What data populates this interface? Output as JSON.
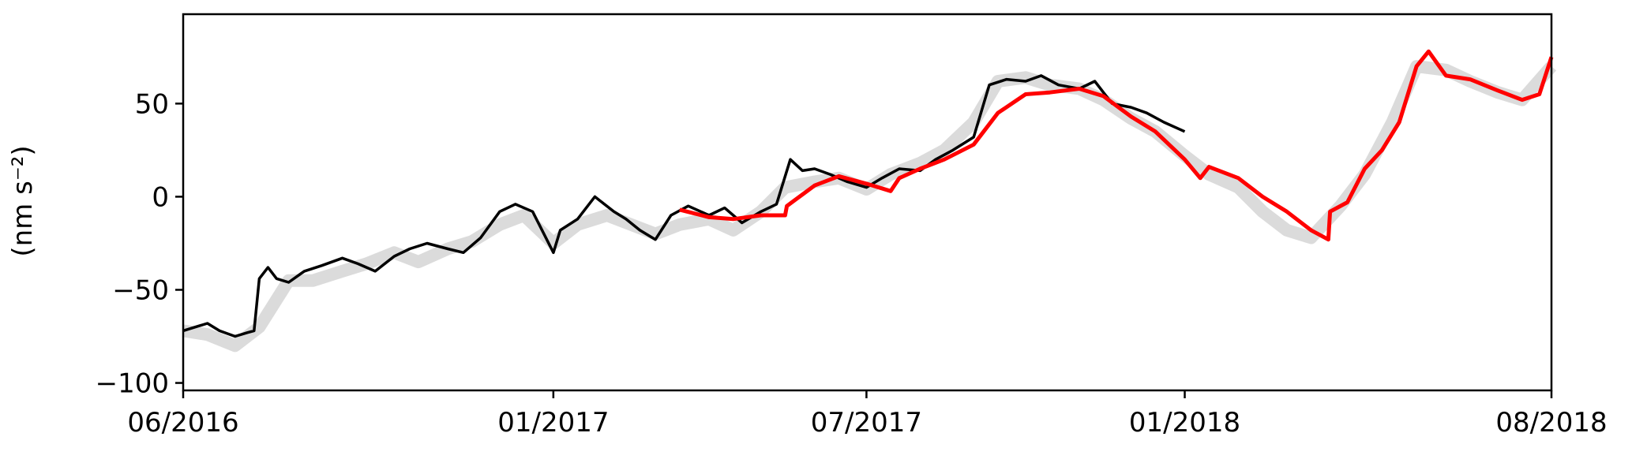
{
  "chart_data": {
    "type": "line",
    "title": "",
    "xlabel": "",
    "ylabel": "(nm s⁻²)",
    "x_ticks": [
      "06/2016",
      "01/2017",
      "07/2017",
      "01/2018",
      "08/2018"
    ],
    "x_tick_dates": [
      "2016-06-01",
      "2017-01-01",
      "2017-07-01",
      "2018-01-01",
      "2018-08-01"
    ],
    "y_ticks": [
      "50",
      "0",
      "−50",
      "−100"
    ],
    "y_tick_values": [
      50,
      0,
      -50,
      -100
    ],
    "xlim": [
      "2016-06-01",
      "2018-08-01"
    ],
    "ylim": [
      -104,
      98
    ],
    "grid": false,
    "legend": "none",
    "series": [
      {
        "color": "#d9d9d9",
        "style": "band",
        "points": [
          [
            "2016-06-01",
            -72
          ],
          [
            "2016-06-15",
            -74
          ],
          [
            "2016-07-01",
            -80
          ],
          [
            "2016-07-15",
            -70
          ],
          [
            "2016-08-01",
            -45
          ],
          [
            "2016-08-15",
            -45
          ],
          [
            "2016-09-01",
            -40
          ],
          [
            "2016-09-15",
            -36
          ],
          [
            "2016-10-01",
            -30
          ],
          [
            "2016-10-15",
            -35
          ],
          [
            "2016-11-01",
            -28
          ],
          [
            "2016-11-15",
            -24
          ],
          [
            "2016-12-01",
            -15
          ],
          [
            "2016-12-15",
            -10
          ],
          [
            "2017-01-01",
            -25
          ],
          [
            "2017-01-15",
            -15
          ],
          [
            "2017-02-01",
            -10
          ],
          [
            "2017-02-15",
            -15
          ],
          [
            "2017-03-01",
            -20
          ],
          [
            "2017-03-15",
            -15
          ],
          [
            "2017-04-01",
            -12
          ],
          [
            "2017-04-15",
            -18
          ],
          [
            "2017-05-01",
            -8
          ],
          [
            "2017-05-15",
            5
          ],
          [
            "2017-06-01",
            8
          ],
          [
            "2017-06-15",
            10
          ],
          [
            "2017-07-01",
            4
          ],
          [
            "2017-07-15",
            12
          ],
          [
            "2017-08-01",
            18
          ],
          [
            "2017-08-15",
            25
          ],
          [
            "2017-09-01",
            40
          ],
          [
            "2017-09-15",
            62
          ],
          [
            "2017-10-01",
            64
          ],
          [
            "2017-10-15",
            60
          ],
          [
            "2017-11-01",
            58
          ],
          [
            "2017-11-15",
            52
          ],
          [
            "2017-12-01",
            42
          ],
          [
            "2017-12-15",
            35
          ],
          [
            "2018-01-01",
            22
          ],
          [
            "2018-01-15",
            12
          ],
          [
            "2018-02-01",
            5
          ],
          [
            "2018-02-15",
            -8
          ],
          [
            "2018-03-01",
            -18
          ],
          [
            "2018-03-15",
            -22
          ],
          [
            "2018-04-01",
            -5
          ],
          [
            "2018-04-15",
            12
          ],
          [
            "2018-05-01",
            40
          ],
          [
            "2018-05-15",
            70
          ],
          [
            "2018-06-01",
            68
          ],
          [
            "2018-06-15",
            62
          ],
          [
            "2018-07-01",
            56
          ],
          [
            "2018-07-15",
            52
          ],
          [
            "2018-08-01",
            70
          ]
        ]
      },
      {
        "color": "#000000",
        "style": "line",
        "points": [
          [
            "2016-06-01",
            -72
          ],
          [
            "2016-06-08",
            -70
          ],
          [
            "2016-06-15",
            -68
          ],
          [
            "2016-06-22",
            -72
          ],
          [
            "2016-07-01",
            -75
          ],
          [
            "2016-07-08",
            -73
          ],
          [
            "2016-07-12",
            -72
          ],
          [
            "2016-07-15",
            -44
          ],
          [
            "2016-07-20",
            -38
          ],
          [
            "2016-07-25",
            -44
          ],
          [
            "2016-08-01",
            -46
          ],
          [
            "2016-08-10",
            -40
          ],
          [
            "2016-08-20",
            -37
          ],
          [
            "2016-09-01",
            -33
          ],
          [
            "2016-09-10",
            -36
          ],
          [
            "2016-09-20",
            -40
          ],
          [
            "2016-10-01",
            -32
          ],
          [
            "2016-10-10",
            -28
          ],
          [
            "2016-10-20",
            -25
          ],
          [
            "2016-11-01",
            -28
          ],
          [
            "2016-11-10",
            -30
          ],
          [
            "2016-11-20",
            -22
          ],
          [
            "2016-12-01",
            -8
          ],
          [
            "2016-12-10",
            -4
          ],
          [
            "2016-12-20",
            -8
          ],
          [
            "2017-01-01",
            -30
          ],
          [
            "2017-01-05",
            -18
          ],
          [
            "2017-01-15",
            -12
          ],
          [
            "2017-01-25",
            0
          ],
          [
            "2017-02-05",
            -8
          ],
          [
            "2017-02-12",
            -12
          ],
          [
            "2017-02-20",
            -18
          ],
          [
            "2017-03-01",
            -23
          ],
          [
            "2017-03-10",
            -10
          ],
          [
            "2017-03-20",
            -5
          ],
          [
            "2017-04-01",
            -10
          ],
          [
            "2017-04-10",
            -6
          ],
          [
            "2017-04-20",
            -14
          ],
          [
            "2017-05-01",
            -8
          ],
          [
            "2017-05-10",
            -4
          ],
          [
            "2017-05-18",
            20
          ],
          [
            "2017-05-25",
            14
          ],
          [
            "2017-06-01",
            15
          ],
          [
            "2017-06-10",
            12
          ],
          [
            "2017-06-20",
            8
          ],
          [
            "2017-07-01",
            5
          ],
          [
            "2017-07-10",
            10
          ],
          [
            "2017-07-20",
            15
          ],
          [
            "2017-08-01",
            14
          ],
          [
            "2017-08-10",
            20
          ],
          [
            "2017-08-20",
            25
          ],
          [
            "2017-09-01",
            32
          ],
          [
            "2017-09-10",
            60
          ],
          [
            "2017-09-20",
            63
          ],
          [
            "2017-10-01",
            62
          ],
          [
            "2017-10-10",
            65
          ],
          [
            "2017-10-20",
            60
          ],
          [
            "2017-11-01",
            58
          ],
          [
            "2017-11-10",
            62
          ],
          [
            "2017-11-20",
            50
          ],
          [
            "2017-12-01",
            48
          ],
          [
            "2017-12-10",
            45
          ],
          [
            "2017-12-20",
            40
          ],
          [
            "2018-01-01",
            35
          ]
        ]
      },
      {
        "color": "#ff0000",
        "style": "line",
        "points": [
          [
            "2017-03-15",
            -7
          ],
          [
            "2017-04-01",
            -11
          ],
          [
            "2017-04-15",
            -12
          ],
          [
            "2017-05-01",
            -10
          ],
          [
            "2017-05-15",
            -10
          ],
          [
            "2017-05-16",
            -5
          ],
          [
            "2017-06-01",
            6
          ],
          [
            "2017-06-15",
            11
          ],
          [
            "2017-07-01",
            7
          ],
          [
            "2017-07-15",
            3
          ],
          [
            "2017-07-20",
            10
          ],
          [
            "2017-08-01",
            15
          ],
          [
            "2017-08-15",
            20
          ],
          [
            "2017-09-01",
            28
          ],
          [
            "2017-09-15",
            45
          ],
          [
            "2017-10-01",
            55
          ],
          [
            "2017-10-15",
            56
          ],
          [
            "2017-11-01",
            58
          ],
          [
            "2017-11-15",
            54
          ],
          [
            "2017-12-01",
            43
          ],
          [
            "2017-12-15",
            35
          ],
          [
            "2018-01-01",
            20
          ],
          [
            "2018-01-10",
            10
          ],
          [
            "2018-01-15",
            16
          ],
          [
            "2018-02-01",
            10
          ],
          [
            "2018-02-15",
            0
          ],
          [
            "2018-03-01",
            -8
          ],
          [
            "2018-03-15",
            -18
          ],
          [
            "2018-03-25",
            -23
          ],
          [
            "2018-03-26",
            -8
          ],
          [
            "2018-04-05",
            -3
          ],
          [
            "2018-04-15",
            15
          ],
          [
            "2018-04-25",
            25
          ],
          [
            "2018-05-05",
            40
          ],
          [
            "2018-05-15",
            70
          ],
          [
            "2018-05-22",
            78
          ],
          [
            "2018-06-01",
            65
          ],
          [
            "2018-06-15",
            63
          ],
          [
            "2018-07-01",
            57
          ],
          [
            "2018-07-15",
            52
          ],
          [
            "2018-07-25",
            55
          ],
          [
            "2018-08-01",
            75
          ]
        ]
      }
    ]
  }
}
